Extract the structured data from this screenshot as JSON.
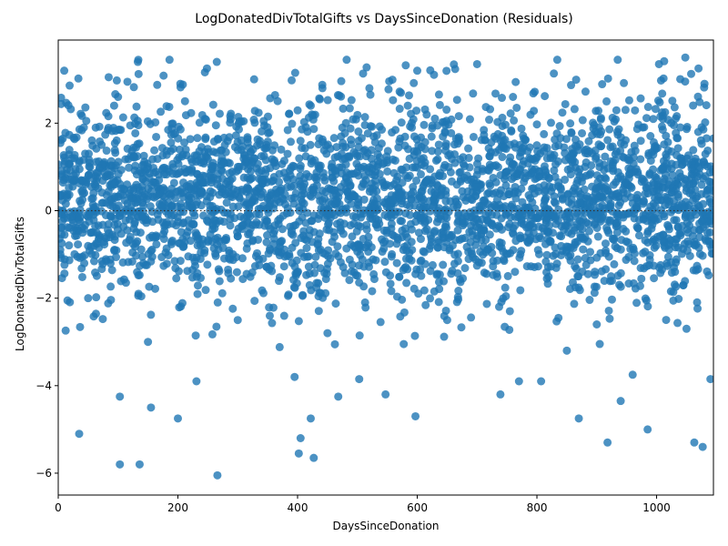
{
  "chart_data": {
    "type": "scatter",
    "title": "LogDonatedDivTotalGifts vs DaysSinceDonation (Residuals)",
    "xlabel": "DaysSinceDonation",
    "ylabel": "LogDonatedDivTotalGifts",
    "xlim": [
      0,
      1095
    ],
    "ylim": [
      -6.5,
      3.9
    ],
    "x_ticks": [
      0,
      200,
      400,
      600,
      800,
      1000
    ],
    "y_ticks": [
      -6,
      -4,
      -2,
      0,
      2
    ],
    "reference_line_y": 0,
    "point_color": "#1f77b4",
    "point_alpha": 0.8,
    "grid": false,
    "outliers": [
      {
        "x": 35,
        "y": -5.1
      },
      {
        "x": 103,
        "y": -5.8
      },
      {
        "x": 136,
        "y": -5.8
      },
      {
        "x": 200,
        "y": -4.75
      },
      {
        "x": 266,
        "y": -6.05
      },
      {
        "x": 405,
        "y": -5.2
      },
      {
        "x": 402,
        "y": -5.55
      },
      {
        "x": 427,
        "y": -5.65
      },
      {
        "x": 422,
        "y": -4.75
      },
      {
        "x": 597,
        "y": -4.7
      },
      {
        "x": 870,
        "y": -4.75
      },
      {
        "x": 918,
        "y": -5.3
      },
      {
        "x": 985,
        "y": -5.0
      },
      {
        "x": 1063,
        "y": -5.3
      },
      {
        "x": 1077,
        "y": -5.4
      },
      {
        "x": 103,
        "y": -4.25
      },
      {
        "x": 155,
        "y": -4.5
      },
      {
        "x": 468,
        "y": -4.25
      },
      {
        "x": 547,
        "y": -4.2
      },
      {
        "x": 739,
        "y": -4.2
      },
      {
        "x": 940,
        "y": -4.35
      },
      {
        "x": 1090,
        "y": -3.85
      },
      {
        "x": 231,
        "y": -3.9
      },
      {
        "x": 395,
        "y": -3.8
      },
      {
        "x": 503,
        "y": -3.85
      },
      {
        "x": 770,
        "y": -3.9
      },
      {
        "x": 807,
        "y": -3.9
      },
      {
        "x": 960,
        "y": -3.75
      }
    ],
    "sample_points": [
      {
        "x": 10,
        "y": 3.2
      },
      {
        "x": 186,
        "y": 3.45
      },
      {
        "x": 265,
        "y": 3.4
      },
      {
        "x": 482,
        "y": 3.45
      },
      {
        "x": 834,
        "y": 3.45
      },
      {
        "x": 935,
        "y": 3.45
      },
      {
        "x": 1048,
        "y": 3.5
      },
      {
        "x": 1004,
        "y": 3.35
      },
      {
        "x": 133,
        "y": 3.4
      },
      {
        "x": 600,
        "y": 3.2
      },
      {
        "x": 700,
        "y": 3.35
      },
      {
        "x": 396,
        "y": 3.15
      },
      {
        "x": 100,
        "y": 2.6
      },
      {
        "x": 520,
        "y": 2.8
      },
      {
        "x": 760,
        "y": 2.6
      },
      {
        "x": 1080,
        "y": 2.9
      },
      {
        "x": 300,
        "y": -2.5
      },
      {
        "x": 650,
        "y": -2.5
      },
      {
        "x": 900,
        "y": -2.6
      },
      {
        "x": 50,
        "y": -2.0
      },
      {
        "x": 450,
        "y": -2.8
      },
      {
        "x": 850,
        "y": -3.2
      },
      {
        "x": 1050,
        "y": -2.7
      },
      {
        "x": 150,
        "y": -3.0
      }
    ],
    "main_band": {
      "y_mean": 0.25,
      "y_spread": 1.1,
      "n_points": 3300,
      "x_range": [
        0,
        1095
      ]
    }
  }
}
